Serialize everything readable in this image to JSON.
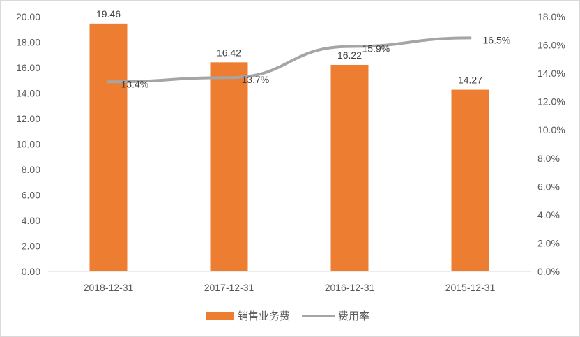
{
  "chart_data": {
    "type": "bar",
    "categories": [
      "2018-12-31",
      "2017-12-31",
      "2016-12-31",
      "2015-12-31"
    ],
    "series": [
      {
        "name": "销售业务费",
        "type": "bar",
        "axis": "left",
        "color": "#ED7D31",
        "values": [
          19.46,
          16.42,
          16.22,
          14.27
        ],
        "labels": [
          "19.46",
          "16.42",
          "16.22",
          "14.27"
        ]
      },
      {
        "name": "费用率",
        "type": "line",
        "axis": "right",
        "color": "#A5A5A5",
        "values": [
          13.4,
          13.7,
          15.9,
          16.5
        ],
        "labels": [
          "13.4%",
          "13.7%",
          "15.9%",
          "16.5%"
        ]
      }
    ],
    "y_left": {
      "min": 0,
      "max": 20,
      "step": 2,
      "ticks": [
        "0.00",
        "2.00",
        "4.00",
        "6.00",
        "8.00",
        "10.00",
        "12.00",
        "14.00",
        "16.00",
        "18.00",
        "20.00"
      ]
    },
    "y_right": {
      "min": 0,
      "max": 18,
      "step": 2,
      "ticks": [
        "0.0%",
        "2.0%",
        "4.0%",
        "6.0%",
        "8.0%",
        "10.0%",
        "12.0%",
        "14.0%",
        "16.0%",
        "18.0%"
      ]
    },
    "grid": false,
    "legend_position": "bottom"
  }
}
